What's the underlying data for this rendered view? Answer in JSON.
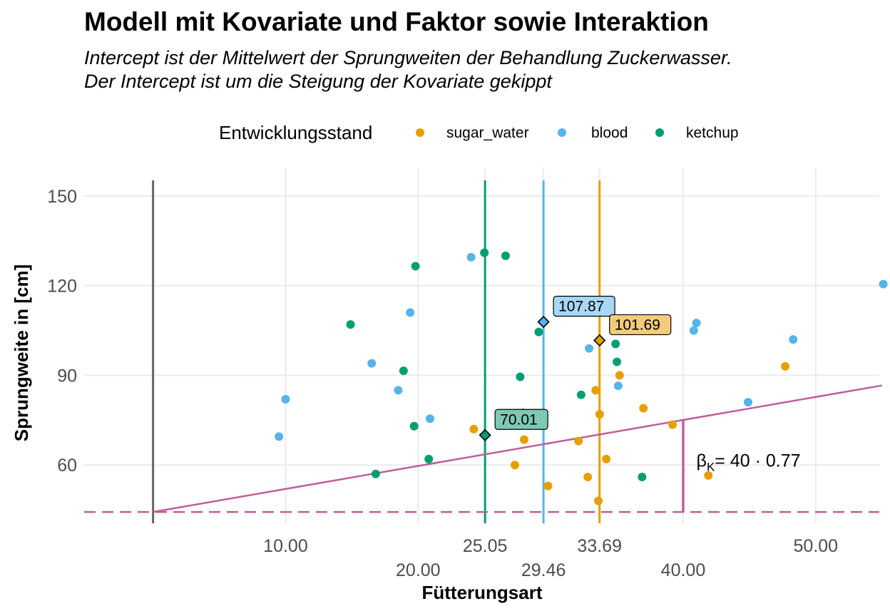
{
  "title": "Modell mit Kovariate und Faktor sowie Interaktion",
  "subtitle_line1": "Intercept ist der Mittelwert der Sprungweiten der Behandlung Zuckerwasser.",
  "subtitle_line2": "Der Intercept ist um die Steigung der Kovariate gekippt",
  "legend": {
    "title": "Entwicklungsstand",
    "items": [
      {
        "label": "sugar_water",
        "color": "#E69F00"
      },
      {
        "label": "blood",
        "color": "#56B4E9"
      },
      {
        "label": "ketchup",
        "color": "#009E73"
      }
    ]
  },
  "chart_data": {
    "type": "scatter",
    "xlabel": "Fütterungsart",
    "ylabel": "Sprungweite in [cm]",
    "xlim": [
      -5.2,
      54.8
    ],
    "ylim": [
      40.5,
      159.5
    ],
    "x_ticks": [
      {
        "value": 10,
        "label": "10.00",
        "row": 1
      },
      {
        "value": 20,
        "label": "20.00",
        "row": 2
      },
      {
        "value": 25.05,
        "label": "25.05",
        "row": 1
      },
      {
        "value": 29.46,
        "label": "29.46",
        "row": 2
      },
      {
        "value": 33.69,
        "label": "33.69",
        "row": 1
      },
      {
        "value": 40,
        "label": "40.00",
        "row": 2
      },
      {
        "value": 50,
        "label": "50.00",
        "row": 1
      }
    ],
    "y_ticks": [
      60,
      90,
      120,
      150
    ],
    "series": [
      {
        "name": "sugar_water",
        "color": "#E69F00",
        "points": [
          [
            24.2,
            72
          ],
          [
            27.9,
            77.5
          ],
          [
            28.0,
            68.5
          ],
          [
            27.3,
            60
          ],
          [
            29.8,
            53
          ],
          [
            32.1,
            68
          ],
          [
            32.8,
            56
          ],
          [
            33.4,
            85
          ],
          [
            33.6,
            48
          ],
          [
            33.7,
            77
          ],
          [
            34.2,
            62
          ],
          [
            35.2,
            90
          ],
          [
            37.0,
            79
          ],
          [
            39.2,
            73.5
          ],
          [
            41.9,
            56.5
          ],
          [
            47.7,
            93
          ]
        ]
      },
      {
        "name": "blood",
        "color": "#56B4E9",
        "points": [
          [
            9.5,
            69.5
          ],
          [
            10.0,
            82
          ],
          [
            16.5,
            94
          ],
          [
            18.5,
            85
          ],
          [
            19.4,
            111
          ],
          [
            20.9,
            75.5
          ],
          [
            24.0,
            129.5
          ],
          [
            32.9,
            99
          ],
          [
            35.1,
            86.5
          ],
          [
            40.8,
            105
          ],
          [
            41.0,
            107.5
          ],
          [
            44.9,
            81
          ],
          [
            48.3,
            102
          ],
          [
            55.1,
            120.5
          ]
        ]
      },
      {
        "name": "ketchup",
        "color": "#009E73",
        "points": [
          [
            14.9,
            107
          ],
          [
            16.8,
            57
          ],
          [
            18.9,
            91.5
          ],
          [
            19.7,
            73
          ],
          [
            19.8,
            126.5
          ],
          [
            20.8,
            62
          ],
          [
            25.0,
            131
          ],
          [
            26.6,
            130
          ],
          [
            27.7,
            89.5
          ],
          [
            29.1,
            104.5
          ],
          [
            32.3,
            83.5
          ],
          [
            34.9,
            100.5
          ],
          [
            35.0,
            94.5
          ],
          [
            36.9,
            56
          ]
        ]
      }
    ],
    "group_means": [
      {
        "name": "blood",
        "x": 29.46,
        "y": 107.87,
        "label": "107.87",
        "color": "#56B4E9",
        "fill": "#A8D8F5"
      },
      {
        "name": "sugar_water",
        "x": 33.69,
        "y": 101.69,
        "label": "101.69",
        "color": "#E69F00",
        "fill": "#F3CB7C"
      },
      {
        "name": "ketchup",
        "x": 25.05,
        "y": 70.01,
        "label": "70.01",
        "color": "#009E73",
        "fill": "#7FC9B4"
      }
    ],
    "vertical_lines": [
      {
        "x": 0,
        "color": "#666666"
      },
      {
        "x": 25.05,
        "color": "#009E73"
      },
      {
        "x": 29.46,
        "color": "#56B4E9"
      },
      {
        "x": 33.69,
        "color": "#E69F00"
      }
    ],
    "regression_line": {
      "x": [
        0,
        55.0
      ],
      "y": [
        44.3,
        86.6
      ],
      "color": "#C05E9A"
    },
    "intercept_line": {
      "y": 44.3,
      "color": "#C05E9A",
      "style": "dashed"
    },
    "slope_segment": {
      "x": 40,
      "y_from": 44.3,
      "y_to": 75.1,
      "color": "#C05E9A"
    },
    "slope_annotation": {
      "symbol": "β",
      "subscript": "K",
      "text": "= 40 · 0.77",
      "x": 41.0,
      "y": 59.5
    }
  }
}
